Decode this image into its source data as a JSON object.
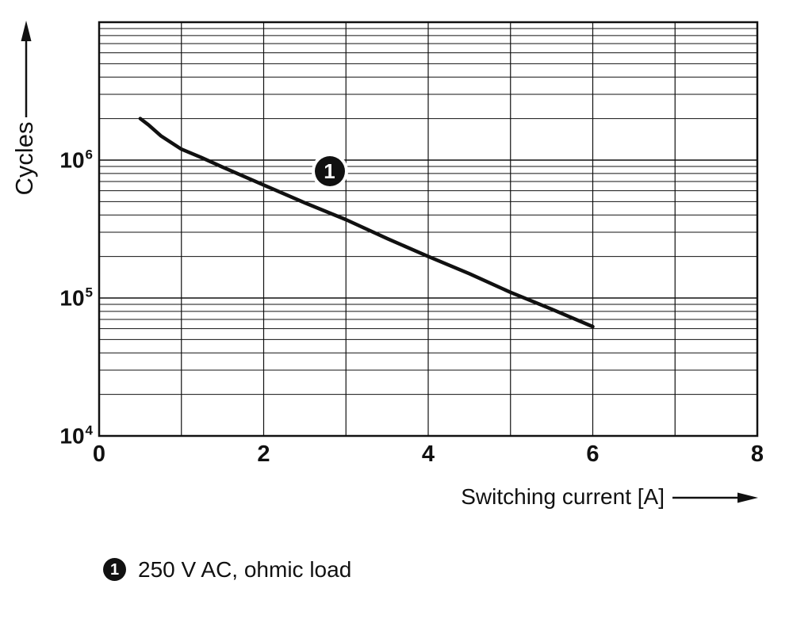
{
  "figure": {
    "y_axis": {
      "label": "Cycles",
      "ticks": [
        {
          "base": "10",
          "exp": "6"
        },
        {
          "base": "10",
          "exp": "5"
        },
        {
          "base": "10",
          "exp": "4"
        }
      ]
    },
    "x_axis": {
      "label": "Switching current [A]",
      "ticks": [
        "0",
        "2",
        "4",
        "6",
        "8"
      ]
    },
    "curve_marker": "1"
  },
  "legend": {
    "marker": "1",
    "text": "250 V AC, ohmic load"
  },
  "colors": {
    "ink": "#111111",
    "background": "#ffffff"
  },
  "chart_data": {
    "type": "line",
    "title": "",
    "xlabel": "Switching current [A]",
    "ylabel": "Cycles",
    "xlim": [
      0,
      8
    ],
    "x_ticks": [
      0,
      2,
      4,
      6,
      8
    ],
    "yscale": "log",
    "ylim": [
      10000,
      10000000
    ],
    "y_ticks": [
      1000000,
      100000,
      10000
    ],
    "grid": "vertical lines every 1 A; horizontal log-decade lines with minors at 2-9 per decade",
    "legend_position": "below figure",
    "series": [
      {
        "name": "250 V AC, ohmic load",
        "label": "1",
        "x": [
          0.5,
          0.6,
          0.75,
          1.0,
          1.25,
          1.5,
          2.0,
          2.5,
          3.0,
          3.5,
          4.0,
          4.5,
          5.0,
          5.5,
          6.0
        ],
        "y": [
          2000000,
          1800000,
          1500000,
          1200000,
          1040000,
          890000,
          660000,
          490000,
          370000,
          270000,
          200000,
          150000,
          110000,
          83000,
          62000
        ]
      }
    ],
    "annotations": [
      {
        "label": "1",
        "x": 2.8,
        "y": 830000
      }
    ]
  }
}
